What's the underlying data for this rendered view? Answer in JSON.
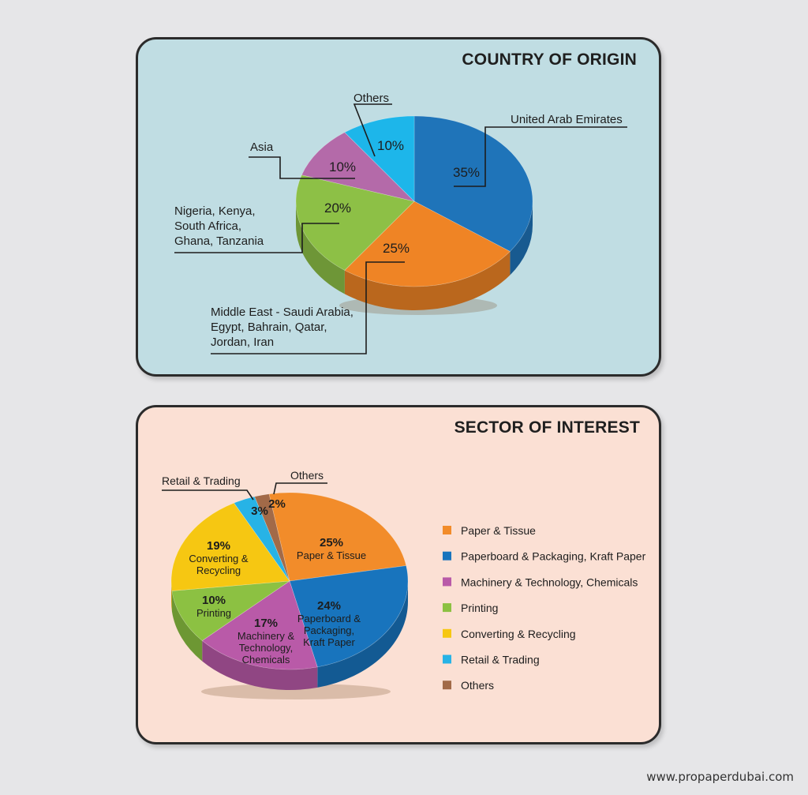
{
  "chart_data": [
    {
      "type": "pie",
      "title": "COUNTRY OF ORIGIN",
      "slices": [
        {
          "label": "United Arab Emirates",
          "value": 35,
          "value_label": "35%",
          "color": "#1f74b9"
        },
        {
          "label": "Middle East - Saudi Arabia, Egypt, Bahrain, Qatar, Jordan, Iran",
          "label_lines": [
            "Middle East - Saudi Arabia,",
            "Egypt, Bahrain, Qatar,",
            "Jordan, Iran"
          ],
          "value": 25,
          "value_label": "25%",
          "color": "#ef8425"
        },
        {
          "label": "Nigeria, Kenya, South Africa, Ghana, Tanzania",
          "label_lines": [
            "Nigeria, Kenya,",
            "South Africa,",
            "Ghana, Tanzania"
          ],
          "value": 20,
          "value_label": "20%",
          "color": "#8dc046"
        },
        {
          "label": "Asia",
          "value": 10,
          "value_label": "10%",
          "color": "#b46aa9"
        },
        {
          "label": "Others",
          "value": 10,
          "value_label": "10%",
          "color": "#1db6ea"
        }
      ]
    },
    {
      "type": "pie",
      "title": "SECTOR OF INTEREST",
      "legend": "right",
      "slices": [
        {
          "label": "Paper & Tissue",
          "label_lines": [
            "Paper & Tissue"
          ],
          "value": 25,
          "value_label": "25%",
          "color": "#f28c2a"
        },
        {
          "label": "Paperboard & Packaging, Kraft Paper",
          "label_lines": [
            "Paperboard &",
            "Packaging,",
            "Kraft Paper"
          ],
          "value": 24,
          "value_label": "24%",
          "color": "#1874bd"
        },
        {
          "label": "Machinery & Technology, Chemicals",
          "label_lines": [
            "Machinery &",
            "Technology,",
            "Chemicals"
          ],
          "value": 17,
          "value_label": "17%",
          "color": "#b95aa8"
        },
        {
          "label": "Printing",
          "label_lines": [
            "Printing"
          ],
          "value": 10,
          "value_label": "10%",
          "color": "#8cc142"
        },
        {
          "label": "Converting & Recycling",
          "label_lines": [
            "Converting &",
            "Recycling"
          ],
          "value": 19,
          "value_label": "19%",
          "color": "#f6c712"
        },
        {
          "label": "Retail & Trading",
          "value": 3,
          "value_label": "3%",
          "color": "#27b3e6"
        },
        {
          "label": "Others",
          "value": 2,
          "value_label": "2%",
          "color": "#a26a48"
        }
      ]
    }
  ],
  "footer": {
    "text": "www.propaperdubai.com"
  }
}
